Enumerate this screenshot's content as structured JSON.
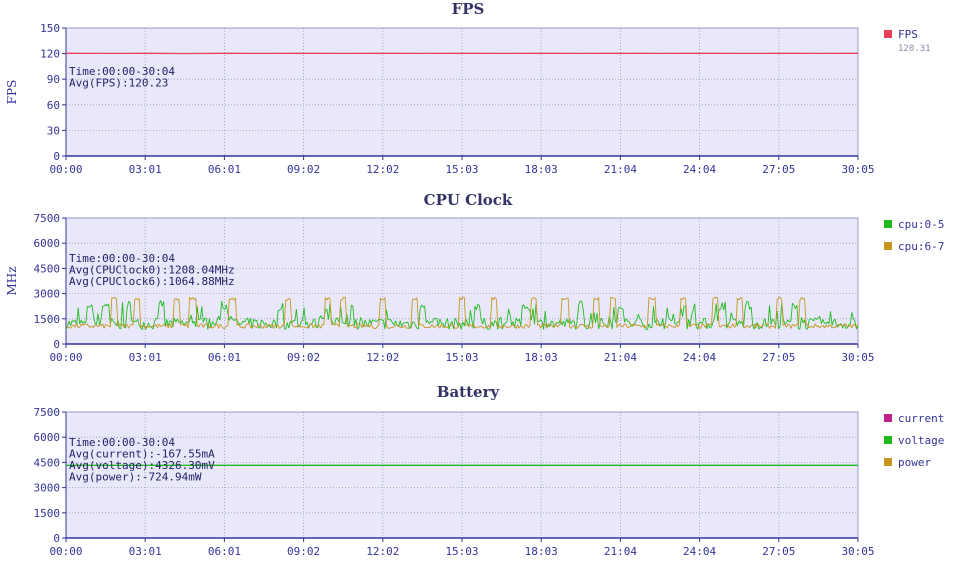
{
  "chart_data": [
    {
      "type": "line",
      "title": "FPS",
      "ylabel": "FPS",
      "x_ticks": [
        "00:00",
        "03:01",
        "06:01",
        "09:02",
        "12:02",
        "15:03",
        "18:03",
        "21:04",
        "24:04",
        "27:05",
        "30:05"
      ],
      "y_ticks": [
        0,
        30,
        60,
        90,
        120,
        150
      ],
      "ylim": [
        0,
        150
      ],
      "grid": true,
      "legend_position": "right",
      "annotations": [
        "Time:00:00-30:04",
        "Avg(FPS):120.23"
      ],
      "series": [
        {
          "name": "FPS",
          "legend_value": "120.31",
          "color": "#e8405a",
          "values": [
            120.3,
            120.2,
            120.3,
            120.1,
            120.3,
            120.2,
            120.3,
            120.2,
            120.3,
            120.2,
            120.3,
            120.2,
            120.3,
            120.2,
            120.3,
            120.2,
            120.3,
            120.2,
            120.3,
            120.2,
            120.3
          ]
        }
      ]
    },
    {
      "type": "line",
      "title": "CPU Clock",
      "ylabel": "MHz",
      "x_ticks": [
        "00:00",
        "03:01",
        "06:01",
        "09:02",
        "12:02",
        "15:03",
        "18:03",
        "21:04",
        "24:04",
        "27:05",
        "30:05"
      ],
      "y_ticks": [
        0,
        1500,
        3000,
        4500,
        6000,
        7500
      ],
      "ylim": [
        0,
        7500
      ],
      "grid": true,
      "legend_position": "right",
      "annotations": [
        "Time:00:00-30:04",
        "Avg(CPUClock0):1208.04MHz",
        "Avg(CPUClock6):1064.88MHz"
      ],
      "series": [
        {
          "name": "cpu:0-5",
          "color": "#22bb22",
          "mean": 1208,
          "spikes": [
            0.03,
            0.05,
            0.08,
            0.12,
            0.2,
            0.27,
            0.33,
            0.45,
            0.52,
            0.58,
            0.65,
            0.7,
            0.78,
            0.83,
            0.86,
            0.92
          ]
        },
        {
          "name": "cpu:6-7",
          "color": "#c89620",
          "mean": 1065,
          "spikes": [
            0.06,
            0.09,
            0.14,
            0.16,
            0.21,
            0.28,
            0.33,
            0.35,
            0.4,
            0.44,
            0.5,
            0.54,
            0.59,
            0.63,
            0.67,
            0.69,
            0.74,
            0.78,
            0.82,
            0.85,
            0.9,
            0.93
          ]
        }
      ]
    },
    {
      "type": "line",
      "title": "Battery",
      "ylabel": "",
      "x_ticks": [
        "00:00",
        "03:01",
        "06:01",
        "09:02",
        "12:02",
        "15:03",
        "18:03",
        "21:04",
        "24:04",
        "27:05",
        "30:05"
      ],
      "y_ticks": [
        0,
        1500,
        3000,
        4500,
        6000,
        7500
      ],
      "ylim": [
        0,
        7500
      ],
      "grid": true,
      "legend_position": "right",
      "annotations": [
        "Time:00:00-30:04",
        "Avg(current):-167.55mA",
        "Avg(voltage):4326.30mV",
        "Avg(power):-724.94mW"
      ],
      "series": [
        {
          "name": "current",
          "color": "#c0208a",
          "values": []
        },
        {
          "name": "voltage",
          "color": "#22bb22",
          "values": [
            4326,
            4326,
            4326,
            4326,
            4326,
            4326,
            4326,
            4326,
            4326,
            4326,
            4326
          ]
        },
        {
          "name": "power",
          "color": "#c89620",
          "values": []
        }
      ]
    }
  ]
}
